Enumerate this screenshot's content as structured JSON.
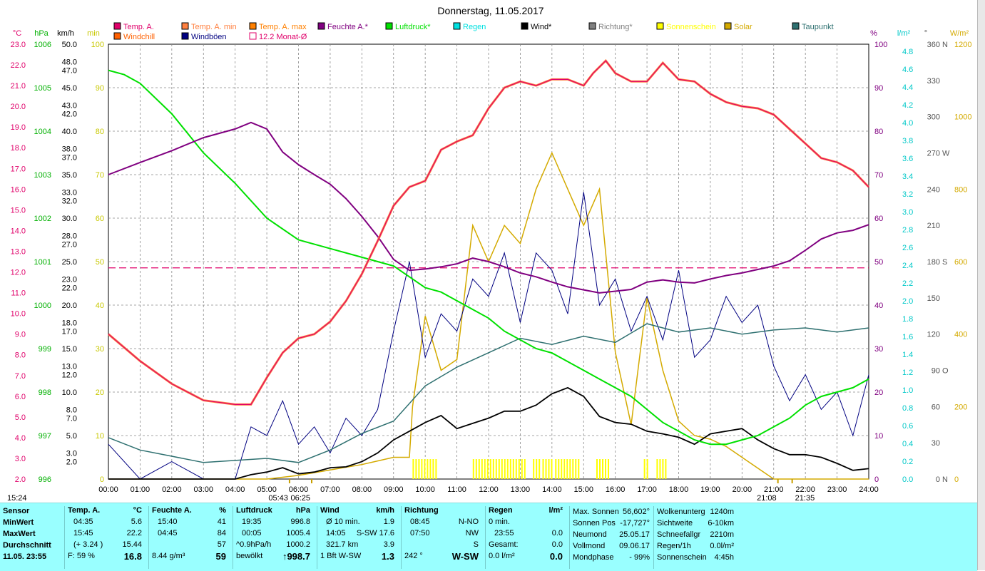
{
  "chart_data": {
    "type": "line",
    "title": "Donnerstag, 11.05.2017",
    "legend": [
      {
        "label": "Temp. A.",
        "color": "#e0006a"
      },
      {
        "label": "Temp. A. min",
        "color": "#ff8040"
      },
      {
        "label": "Temp. A. max",
        "color": "#ff8000"
      },
      {
        "label": "Feuchte A.*",
        "color": "#800080"
      },
      {
        "label": "Luftdruck*",
        "color": "#00e000"
      },
      {
        "label": "Regen",
        "color": "#00e0e0"
      },
      {
        "label": "Wind*",
        "color": "#000000"
      },
      {
        "label": "Richtung*",
        "color": "#808080"
      },
      {
        "label": "Sonnenschein",
        "color": "#ffff00"
      },
      {
        "label": "Solar",
        "color": "#d4aa00"
      },
      {
        "label": "Taupunkt",
        "color": "#2e7070"
      },
      {
        "label": "Windchill",
        "color": "#ff6000"
      },
      {
        "label": "Windböen",
        "color": "#000080"
      },
      {
        "label": "12.2 Monat-Ø",
        "color": "#e0006a"
      }
    ],
    "axis_units": {
      "temp": "°C",
      "pressure": "hPa",
      "wind": "km/h",
      "min": "min",
      "humidity": "%",
      "rain": "l/m²",
      "direction": "°",
      "solar": "W/m²"
    },
    "x_ticks": [
      "00:00",
      "01:00",
      "02:00",
      "03:00",
      "04:00",
      "05:00",
      "06:00",
      "07:00",
      "08:00",
      "09:00",
      "10:00",
      "11:00",
      "12:00",
      "13:00",
      "14:00",
      "15:00",
      "16:00",
      "17:00",
      "18:00",
      "19:00",
      "20:00",
      "21:00",
      "22:00",
      "23:00",
      "24:00"
    ],
    "temp_ticks": [
      "23.0",
      "22.0",
      "21.0",
      "20.0",
      "19.0",
      "18.0",
      "17.0",
      "16.0",
      "15.0",
      "14.0",
      "13.0",
      "12.0",
      "11.0",
      "10.0",
      "9.0",
      "8.0",
      "7.0",
      "6.0",
      "5.0",
      "4.0",
      "3.0",
      "2.0"
    ],
    "pressure_ticks": [
      "1006",
      "1005",
      "1004",
      "1003",
      "1002",
      "1001",
      "1000",
      "999",
      "998",
      "997",
      "996"
    ],
    "wind_ticks": [
      "50.0",
      "48.0",
      "47.0",
      "45.0",
      "43.0",
      "42.0",
      "40.0",
      "38.0",
      "37.0",
      "35.0",
      "33.0",
      "32.0",
      "30.0",
      "28.0",
      "27.0",
      "25.0",
      "23.0",
      "22.0",
      "20.0",
      "18.0",
      "17.0",
      "15.0",
      "13.0",
      "12.0",
      "10.0",
      "8.0",
      "7.0",
      "5.0",
      "3.0",
      "2.0"
    ],
    "min_ticks": [
      "100",
      "90",
      "80",
      "70",
      "60",
      "50",
      "40",
      "30",
      "20",
      "10",
      "0"
    ],
    "humidity_ticks": [
      "100",
      "90",
      "80",
      "70",
      "60",
      "50",
      "40",
      "30",
      "20",
      "10",
      "0"
    ],
    "rain_ticks": [
      "4.8",
      "4.6",
      "4.4",
      "4.2",
      "4.0",
      "3.8",
      "3.6",
      "3.4",
      "3.2",
      "3.0",
      "2.8",
      "2.6",
      "2.4",
      "2.2",
      "2.0",
      "1.8",
      "1.6",
      "1.4",
      "1.2",
      "1.0",
      "0.8",
      "0.6",
      "0.4",
      "0.2",
      "0.0"
    ],
    "direction_ticks": [
      "360 N",
      "330",
      "300",
      "270 W",
      "240",
      "210",
      "180 S",
      "150",
      "120",
      "90 O",
      "60",
      "30",
      "0 N"
    ],
    "solar_ticks": [
      "1200",
      "1000",
      "800",
      "600",
      "400",
      "200",
      "0"
    ],
    "monthly_avg_temp": 12.2,
    "series": [
      {
        "name": "Temp. A.",
        "unit": "°C",
        "x": [
          0,
          1,
          2,
          3,
          4,
          4.5,
          5,
          5.5,
          6,
          6.5,
          7,
          7.5,
          8,
          8.5,
          9,
          9.5,
          10,
          10.5,
          11,
          11.5,
          12,
          12.5,
          13,
          13.5,
          14,
          14.5,
          15,
          15.3,
          15.7,
          16,
          16.5,
          17,
          17.5,
          18,
          18.5,
          19,
          19.5,
          20,
          20.5,
          21,
          21.5,
          22,
          22.5,
          23,
          23.5,
          24
        ],
        "values": [
          9.0,
          7.7,
          6.6,
          5.8,
          5.6,
          5.6,
          6.9,
          8.1,
          8.8,
          9.0,
          9.6,
          10.6,
          11.9,
          13.5,
          15.2,
          16.1,
          16.4,
          17.9,
          18.3,
          18.6,
          19.9,
          20.9,
          21.2,
          21.0,
          21.3,
          21.3,
          21.0,
          21.6,
          22.2,
          21.6,
          21.2,
          21.2,
          22.1,
          21.3,
          21.2,
          20.6,
          20.2,
          20.0,
          19.9,
          19.6,
          18.9,
          18.2,
          17.5,
          17.3,
          16.9,
          16.1
        ]
      },
      {
        "name": "Feuchte A.",
        "unit": "%",
        "x": [
          0,
          1,
          2,
          3,
          4,
          4.5,
          5,
          5.5,
          6,
          6.5,
          7,
          7.5,
          8,
          8.5,
          9,
          9.5,
          10,
          10.5,
          11,
          11.5,
          12,
          12.5,
          13,
          13.5,
          14,
          14.5,
          15,
          15.5,
          16,
          16.5,
          17,
          17.5,
          18,
          18.5,
          19,
          19.5,
          20,
          20.5,
          21,
          21.5,
          22,
          22.5,
          23,
          23.5,
          24
        ],
        "values": [
          70.0,
          72.8,
          75.5,
          78.5,
          80.5,
          82.0,
          80.5,
          75.2,
          72.3,
          70.0,
          67.8,
          64.5,
          60.4,
          55.8,
          50.5,
          48.0,
          48.3,
          48.8,
          49.5,
          50.8,
          50.0,
          48.8,
          47.4,
          46.5,
          45.3,
          44.2,
          43.5,
          42.8,
          43.2,
          43.6,
          45.3,
          45.8,
          45.3,
          45.1,
          46.0,
          46.8,
          47.4,
          48.2,
          49.0,
          50.2,
          52.6,
          55.2,
          56.6,
          57.2,
          58.5
        ]
      },
      {
        "name": "Luftdruck",
        "unit": "hPa",
        "x": [
          0,
          0.5,
          1,
          2,
          3,
          4,
          5,
          6,
          7,
          8,
          9,
          10,
          10.5,
          11,
          11.5,
          12,
          12.5,
          13,
          13.5,
          14,
          14.5,
          15,
          15.5,
          16,
          16.5,
          17,
          17.5,
          18,
          18.5,
          19,
          19.5,
          20,
          20.5,
          21,
          21.5,
          22,
          22.5,
          23,
          23.5,
          24
        ],
        "values": [
          1005.4,
          1005.3,
          1005.1,
          1004.4,
          1003.5,
          1002.8,
          1002.0,
          1001.5,
          1001.3,
          1001.1,
          1000.9,
          1000.4,
          1000.3,
          1000.1,
          999.9,
          999.7,
          999.4,
          999.2,
          999.0,
          998.9,
          998.7,
          998.5,
          998.3,
          998.1,
          997.9,
          997.6,
          997.3,
          997.1,
          996.9,
          996.8,
          996.8,
          996.9,
          997.0,
          997.2,
          997.4,
          997.7,
          997.9,
          998.0,
          998.1,
          998.3
        ]
      },
      {
        "name": "Taupunkt",
        "unit": "°C",
        "x": [
          0,
          1,
          2,
          3,
          4,
          5,
          6,
          7,
          8,
          9,
          10,
          11,
          12,
          13,
          14,
          15,
          16,
          17,
          18,
          19,
          20,
          21,
          22,
          23,
          24
        ],
        "values": [
          4.0,
          3.4,
          3.1,
          2.8,
          2.9,
          3.0,
          2.8,
          3.4,
          4.2,
          4.8,
          6.5,
          7.4,
          8.1,
          8.8,
          8.5,
          8.9,
          8.6,
          9.5,
          9.1,
          9.3,
          9.0,
          9.2,
          9.3,
          9.1,
          9.3
        ]
      },
      {
        "name": "Wind",
        "unit": "km/h",
        "x": [
          0,
          1,
          2,
          3,
          4,
          4.5,
          5,
          5.5,
          6,
          6.5,
          7,
          7.5,
          8,
          8.5,
          9,
          9.5,
          10,
          10.5,
          11,
          11.5,
          12,
          12.5,
          13,
          13.5,
          14,
          14.5,
          15,
          15.5,
          16,
          16.5,
          17,
          17.5,
          18,
          18.5,
          19,
          19.5,
          20,
          20.5,
          21,
          21.5,
          22,
          22.5,
          23,
          23.5,
          24
        ],
        "values": [
          0,
          0,
          0,
          0,
          0,
          0.5,
          0.8,
          1.3,
          0.6,
          0.8,
          1.3,
          1.4,
          2.0,
          3.0,
          4.5,
          5.5,
          6.5,
          7.3,
          5.8,
          6.4,
          7.0,
          7.8,
          7.8,
          8.5,
          9.8,
          10.5,
          9.5,
          7.2,
          6.5,
          6.3,
          5.5,
          5.2,
          4.8,
          4.0,
          5.2,
          5.5,
          5.8,
          4.5,
          3.5,
          2.8,
          2.8,
          2.5,
          1.8,
          1.0,
          1.2
        ]
      },
      {
        "name": "Windböen",
        "unit": "km/h",
        "x": [
          0,
          1,
          2,
          3,
          4,
          4.5,
          5,
          5.5,
          6,
          6.5,
          7,
          7.5,
          8,
          8.5,
          9,
          9.5,
          10,
          10.5,
          11,
          11.5,
          12,
          12.5,
          13,
          13.5,
          14,
          14.5,
          15,
          15.5,
          16,
          16.5,
          17,
          17.5,
          18,
          18.5,
          19,
          19.5,
          20,
          20.5,
          21,
          21.5,
          22,
          22.5,
          23,
          23.5,
          24
        ],
        "values": [
          4,
          0,
          2,
          0,
          0,
          6,
          5,
          9,
          4,
          6,
          3,
          7,
          5,
          8,
          17,
          25,
          14,
          19,
          17,
          23,
          21,
          26,
          18,
          26,
          24,
          19,
          33,
          20,
          23,
          17,
          21,
          16,
          24,
          14,
          16,
          21,
          18,
          20,
          13,
          9,
          12,
          8,
          10,
          5,
          12
        ]
      },
      {
        "name": "Solar",
        "unit": "W/m²",
        "x": [
          0,
          5,
          6,
          7,
          8,
          8.5,
          9,
          9.5,
          9.6,
          10,
          10.5,
          11,
          11.5,
          12,
          12.5,
          13,
          13.5,
          14,
          14.5,
          15,
          15.5,
          16,
          16.5,
          17,
          17.5,
          18,
          18.5,
          19,
          19.5,
          20,
          20.5,
          21,
          24
        ],
        "values": [
          0,
          0,
          10,
          25,
          40,
          50,
          60,
          60,
          200,
          450,
          300,
          330,
          700,
          600,
          700,
          650,
          800,
          900,
          800,
          700,
          800,
          350,
          150,
          500,
          300,
          160,
          120,
          110,
          90,
          60,
          30,
          0,
          0
        ]
      }
    ],
    "sunshine_blocks": [
      [
        9.6,
        10.4
      ],
      [
        11.5,
        13.2
      ],
      [
        13.4,
        13.6
      ],
      [
        13.7,
        14.0
      ],
      [
        14.1,
        14.9
      ],
      [
        15.4,
        15.8
      ],
      [
        16.9,
        17.0
      ],
      [
        17.3,
        17.6
      ]
    ],
    "markers": {
      "sunrise": "05:43",
      "dawn": "06:25",
      "sunset": "21:08",
      "dusk": "21:35",
      "current_time": "15:24"
    }
  },
  "summary": {
    "sensor": {
      "header": "Sensor",
      "rows": [
        "MinWert",
        "MaxWert",
        "Durchschnitt"
      ],
      "stamp": "11.05. 23:55"
    },
    "temp": {
      "header": "Temp. A.",
      "unit": "°C",
      "min_time": "04:35",
      "min_val": "5.6",
      "max_time": "15:45",
      "max_val": "22.2",
      "avg_change": "(+ 3.24 )",
      "avg_val": "15.44",
      "feel": "F: 59 %",
      "current": "16.8"
    },
    "humidity": {
      "header": "Feuchte A.",
      "unit": "%",
      "min_time": "15:40",
      "min_val": "41",
      "max_time": "04:45",
      "max_val": "84",
      "avg_val": "57",
      "abs": "8.44 g/m³",
      "current": "59"
    },
    "pressure": {
      "header": "Luftdruck",
      "unit": "hPa",
      "min_time": "19:35",
      "min_val": "996.8",
      "max_time": "00:05",
      "max_val": "1005.4",
      "trend": "^0.9hPa/h",
      "avg_val": "1000.2",
      "cond": "bewölkt",
      "current": "↑998.7"
    },
    "wind": {
      "header": "Wind",
      "unit": "km/h",
      "r1_label": "Ø 10 min.",
      "r1_val": "1.9",
      "r2_label": "14:05",
      "r2_dir": "S-SW 17.6",
      "r3_label": "321.7 km",
      "r3_val": "3.9",
      "r4_label": "1 Bft W-SW",
      "r4_val": "1.3"
    },
    "direction": {
      "header": "Richtung",
      "r1_time": "08:45",
      "r1_val": "N-NO",
      "r2_time": "07:50",
      "r2_val": "NW",
      "r3_val": "S",
      "r4_deg": "242 °",
      "r4_val": "W-SW"
    },
    "rain": {
      "header": "Regen",
      "unit": "l/m²",
      "r1_label": "0 min.",
      "r1_val": "",
      "r2_label": "23:55",
      "r2_val": "0.0",
      "r3_label": "Gesamt:",
      "r3_val": "0.0",
      "r4_label": "0.0 l/m²",
      "r4_val": "0.0"
    },
    "astro": [
      {
        "label": "Max. Sonnen",
        "val": "56,602°"
      },
      {
        "label": "Sonnen Pos",
        "val": "-17,727°"
      },
      {
        "label": "Neumond",
        "val": "25.05.17"
      },
      {
        "label": "Vollmond",
        "val": "09.06.17"
      },
      {
        "label": "Mondphase",
        "val": "- 99%"
      }
    ],
    "extra": [
      {
        "label": "Wolkenunterg",
        "val": "1240m"
      },
      {
        "label": "Sichtweite",
        "val": "6-10km"
      },
      {
        "label": "Schneefallgr",
        "val": "2210m"
      },
      {
        "label": "Regen/1h",
        "val": "0.0l/m²"
      },
      {
        "label": "Sonnenschein",
        "val": "4:45h"
      }
    ]
  }
}
